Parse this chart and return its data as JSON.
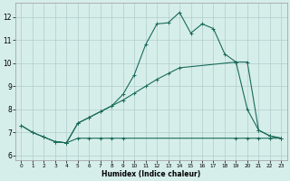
{
  "title": "",
  "xlabel": "Humidex (Indice chaleur)",
  "xlim": [
    -0.5,
    23.5
  ],
  "ylim": [
    5.8,
    12.6
  ],
  "yticks": [
    6,
    7,
    8,
    9,
    10,
    11,
    12
  ],
  "xticks": [
    0,
    1,
    2,
    3,
    4,
    5,
    6,
    7,
    8,
    9,
    10,
    11,
    12,
    13,
    14,
    15,
    16,
    17,
    18,
    19,
    20,
    21,
    22,
    23
  ],
  "bg_color": "#d6eeea",
  "grid_color": "#b0cccc",
  "line_color": "#1a6b5a",
  "line1_x": [
    0,
    1,
    2,
    3,
    4,
    5,
    6,
    7,
    8,
    9,
    10,
    11,
    12,
    13,
    14,
    15,
    16,
    17,
    18,
    19,
    20,
    21,
    22,
    23
  ],
  "line1_y": [
    7.3,
    7.0,
    6.8,
    6.6,
    6.55,
    7.4,
    7.65,
    7.9,
    8.15,
    8.65,
    9.5,
    10.8,
    11.7,
    11.75,
    12.2,
    11.3,
    11.7,
    11.5,
    10.4,
    10.05,
    8.0,
    7.1,
    6.85,
    6.75
  ],
  "line2_x": [
    0,
    1,
    2,
    3,
    4,
    4,
    5,
    6,
    7,
    8,
    9,
    19,
    20,
    21,
    22,
    23
  ],
  "line2_y": [
    7.3,
    7.0,
    6.8,
    6.6,
    6.55,
    6.55,
    6.75,
    6.75,
    6.75,
    6.75,
    6.75,
    6.75,
    6.75,
    6.75,
    6.75,
    6.75
  ],
  "line3_x": [
    3,
    4,
    5,
    6,
    7,
    8,
    9,
    10,
    11,
    12,
    13,
    14,
    19,
    20,
    21,
    22,
    23
  ],
  "line3_y": [
    6.6,
    6.55,
    7.4,
    7.65,
    7.9,
    8.15,
    8.4,
    8.7,
    9.0,
    9.3,
    9.55,
    9.8,
    10.05,
    10.05,
    7.1,
    6.85,
    6.75
  ],
  "linewidth": 0.8,
  "marker_size": 2.5
}
